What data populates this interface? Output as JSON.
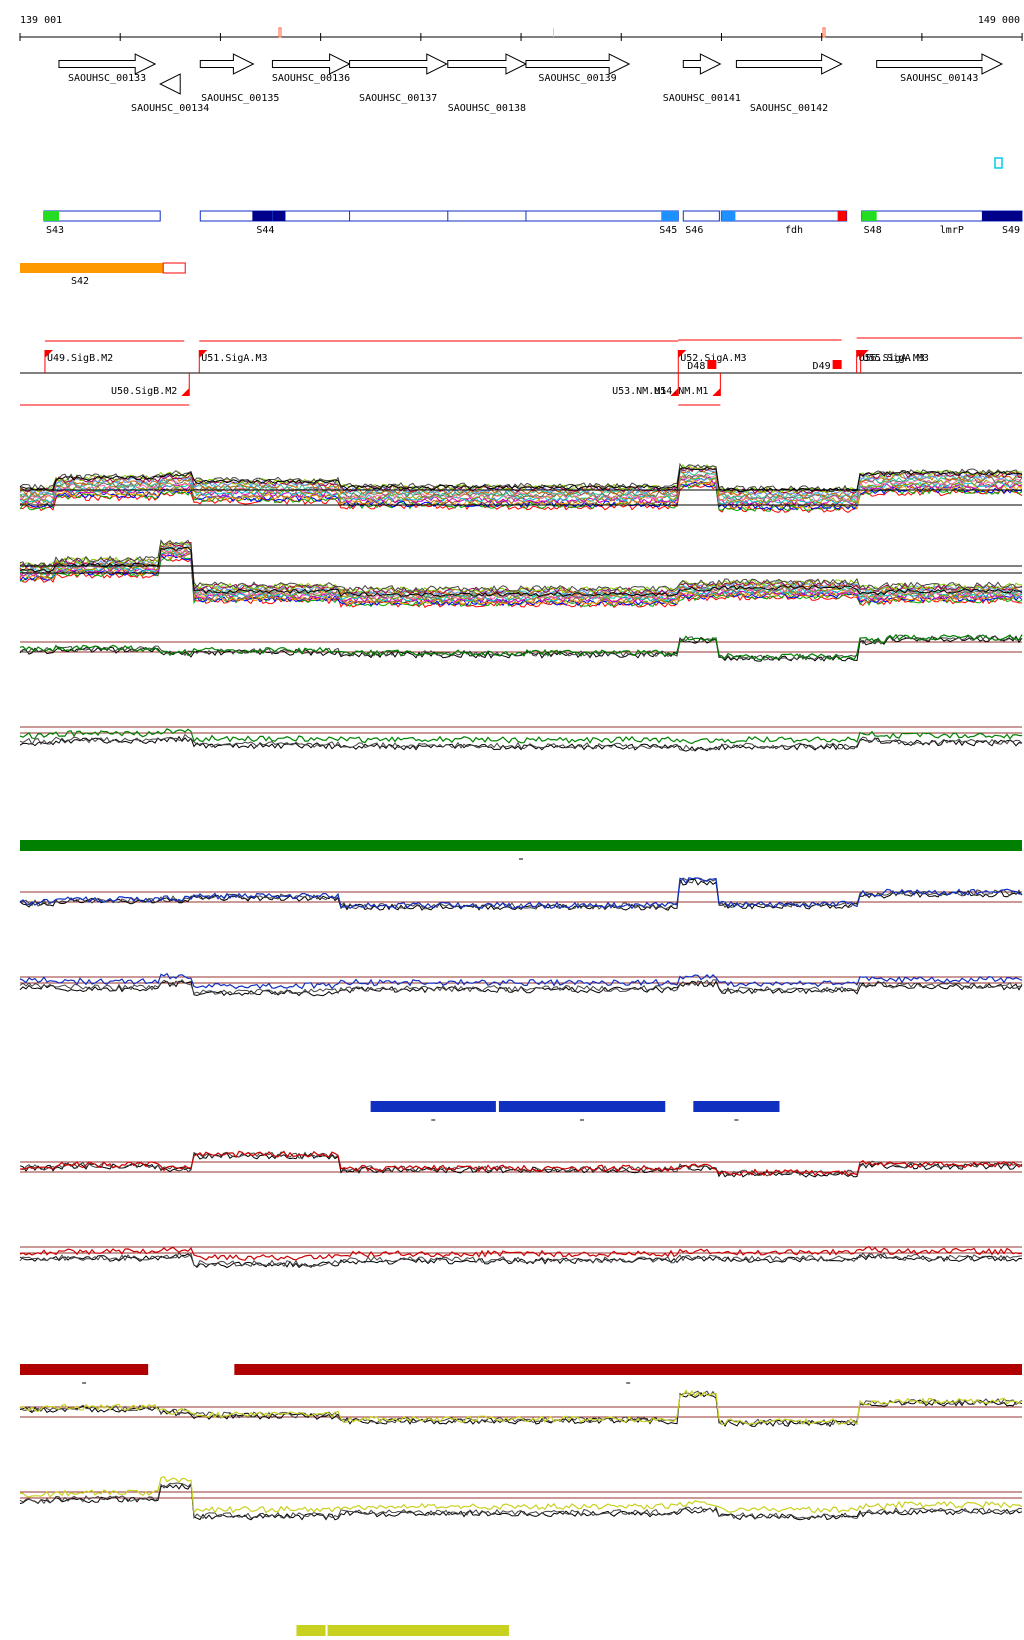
{
  "axis": {
    "start_label": "139 001",
    "end_label": "149 000",
    "start": 139001,
    "end": 149000
  },
  "genes": [
    {
      "name": "SAOUHSC_00133",
      "start": 139390,
      "end": 140350,
      "strand": "+"
    },
    {
      "name": "SAOUHSC_00134",
      "start": 140400,
      "end": 140600,
      "strand": "-"
    },
    {
      "name": "SAOUHSC_00135",
      "start": 140800,
      "end": 141330,
      "strand": "+"
    },
    {
      "name": "SAOUHSC_00136",
      "start": 141520,
      "end": 142290,
      "strand": "+"
    },
    {
      "name": "SAOUHSC_00137",
      "start": 142290,
      "end": 143260,
      "strand": "+"
    },
    {
      "name": "SAOUHSC_00138",
      "start": 143270,
      "end": 144050,
      "strand": "+"
    },
    {
      "name": "SAOUHSC_00139",
      "start": 144050,
      "end": 145080,
      "strand": "+"
    },
    {
      "name": "SAOUHSC_00141",
      "start": 145620,
      "end": 145990,
      "strand": "+"
    },
    {
      "name": "SAOUHSC_00142",
      "start": 146150,
      "end": 147200,
      "strand": "+"
    },
    {
      "name": "SAOUHSC_00143",
      "start": 147550,
      "end": 148800,
      "strand": "+"
    }
  ],
  "segments": [
    {
      "label": "S43",
      "start": 139240,
      "end": 140400,
      "head": 150,
      "head_color": "#22dd22",
      "body_color": "#ffffff",
      "border": "#1030c0",
      "name": ""
    },
    {
      "label": "S44",
      "start": 140800,
      "end": 145570,
      "head": 330,
      "head_color": "#00008b",
      "head_offset": 520,
      "body_color": "#ffffff",
      "border": "#1030c0",
      "dividers": [
        141520,
        142290,
        143270,
        144050
      ],
      "name": ""
    },
    {
      "label": "S45",
      "start": 144840,
      "end": 145570,
      "head": 170,
      "head_color": "#1e90ff",
      "head_at_end": true,
      "body_color": "",
      "border": "",
      "name": ""
    },
    {
      "label": "S46",
      "start": 145620,
      "end": 145980,
      "head": 0,
      "head_color": "",
      "body_color": "#ffffff",
      "border": "#1030c0",
      "name": ""
    },
    {
      "label": "",
      "start": 146000,
      "end": 147250,
      "head": 140,
      "head_color": "#1e90ff",
      "tail": 90,
      "tail_color": "#ff0000",
      "body_color": "#ffffff",
      "border": "#1030c0",
      "name": "fdh"
    },
    {
      "label": "S48",
      "start": 147400,
      "end": 149000,
      "head": 150,
      "head_color": "#22dd22",
      "tail": 400,
      "tail_color": "#00008b",
      "body_color": "#ffffff",
      "border": "#1030c0",
      "name": "lmrP"
    },
    {
      "label": "S49",
      "start": 148600,
      "end": 149000,
      "head": 0,
      "head_color": "",
      "body_color": "",
      "border": "",
      "name": ""
    }
  ],
  "s42": {
    "label": "S42",
    "start": 139001,
    "end": 140450,
    "split": 140430,
    "color": "#ff9900"
  },
  "promoters": [
    {
      "label": "U49.SigB.M2",
      "pos": 139250,
      "strand": "+",
      "box": false
    },
    {
      "label": "U51.SigA.M3",
      "pos": 140790,
      "strand": "+",
      "box": false
    },
    {
      "label": "U52.SigA.M3",
      "pos": 145570,
      "strand": "+",
      "box": false
    },
    {
      "label": "U55.SigA.M3",
      "pos": 147390,
      "strand": "+",
      "box": false
    },
    {
      "label": "U56.SigA.M3",
      "pos": 147350,
      "strand": "+",
      "box": false
    },
    {
      "label": "U50.SigB.M2",
      "pos": 140690,
      "strand": "-",
      "box": false
    },
    {
      "label": "U53.NM.M1",
      "pos": 145570,
      "strand": "-",
      "box": false
    },
    {
      "label": "U54.NM.M1",
      "pos": 145990,
      "strand": "-",
      "box": false
    }
  ],
  "terminators": [
    {
      "label": "D48",
      "pos": 145900
    },
    {
      "label": "D49",
      "pos": 147150
    }
  ],
  "conditions": [
    {
      "color": "#008000",
      "bars": [
        {
          "start": 139001,
          "end": 149000
        }
      ]
    },
    {
      "color": "#1030c0",
      "bars": [
        {
          "start": 142500,
          "end": 143750
        },
        {
          "start": 143780,
          "end": 145440
        },
        {
          "start": 145720,
          "end": 146580
        }
      ]
    },
    {
      "color": "#b00000",
      "bars": [
        {
          "start": 139001,
          "end": 140280
        },
        {
          "start": 141140,
          "end": 149000
        }
      ]
    },
    {
      "color": "#c8d020",
      "bars": [
        {
          "start": 141760,
          "end": 142050
        },
        {
          "start": 142070,
          "end": 143880
        }
      ]
    }
  ],
  "levels": {
    "breakpoints": [
      139001,
      139350,
      140380,
      140720,
      142190,
      145580,
      145950,
      147360,
      147630,
      149000
    ],
    "sense_all": [
      0.4,
      0.55,
      0.6,
      0.5,
      0.42,
      0.7,
      0.38,
      0.6,
      0.62
    ],
    "anti_all": [
      0.55,
      0.62,
      0.85,
      0.25,
      0.2,
      0.28,
      0.3,
      0.22,
      0.25
    ],
    "green_sense": [
      0.5,
      0.52,
      0.45,
      0.48,
      0.44,
      0.68,
      0.38,
      0.65,
      0.7
    ],
    "blue_sense": [
      0.45,
      0.5,
      0.52,
      0.55,
      0.4,
      0.82,
      0.42,
      0.6,
      0.62
    ],
    "red_sense": [
      0.55,
      0.58,
      0.52,
      0.75,
      0.52,
      0.55,
      0.45,
      0.6,
      0.58
    ],
    "yellow_sense": [
      0.6,
      0.62,
      0.55,
      0.5,
      0.42,
      0.85,
      0.38,
      0.7,
      0.72
    ],
    "green_anti": [
      0.45,
      0.48,
      0.52,
      0.4,
      0.38,
      0.35,
      0.38,
      0.48,
      0.45
    ],
    "blue_anti": [
      0.55,
      0.52,
      0.6,
      0.45,
      0.5,
      0.6,
      0.48,
      0.58,
      0.55
    ],
    "red_anti": [
      0.5,
      0.52,
      0.55,
      0.42,
      0.48,
      0.52,
      0.5,
      0.55,
      0.52
    ],
    "yellow_anti": [
      0.55,
      0.58,
      0.8,
      0.3,
      0.35,
      0.4,
      0.3,
      0.35,
      0.38
    ]
  }
}
